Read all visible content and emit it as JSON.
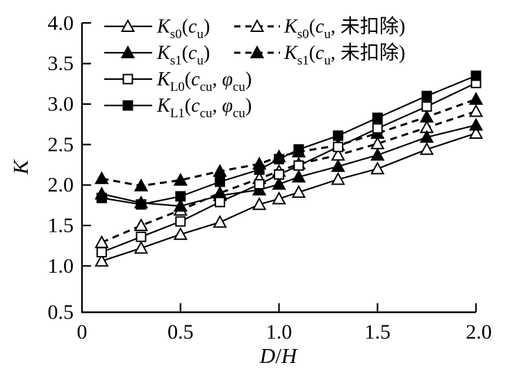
{
  "figure": {
    "background_color": "#ffffff",
    "ink_color": "#000000"
  },
  "chart_data": {
    "type": "line",
    "title": "",
    "xlabel_parts": [
      {
        "t": "D",
        "i": 1
      },
      {
        "t": "/"
      },
      {
        "t": "H",
        "i": 1
      }
    ],
    "ylabel_parts": [
      {
        "t": "K",
        "i": 1
      }
    ],
    "xlabel_text": "D/H",
    "ylabel_text": "K",
    "xlim": [
      0,
      2.0
    ],
    "ylim": [
      0.5,
      4.0
    ],
    "xticks": [
      0,
      0.5,
      1.0,
      1.5,
      2.0
    ],
    "x_tick_labels": [
      "0",
      "0.5",
      "1.0",
      "1.5",
      "2.0"
    ],
    "yticks": [
      0.5,
      1.0,
      1.5,
      2.0,
      2.5,
      3.0,
      3.5,
      4.0
    ],
    "y_tick_labels": [
      "0.5",
      "1.0",
      "1.5",
      "2.0",
      "2.5",
      "3.0",
      "3.5",
      "4.0"
    ],
    "grid": false,
    "legend_position": "top-left",
    "x": [
      0.1,
      0.3,
      0.5,
      0.7,
      0.9,
      1.0,
      1.1,
      1.3,
      1.5,
      1.75,
      2.0
    ],
    "series": [
      {
        "id": "Ks0",
        "name": "Ks0(cu)",
        "marker": "triangle-open",
        "line": "solid",
        "label_parts": [
          {
            "t": "K",
            "i": 1
          },
          {
            "t": "s0",
            "sub": 1
          },
          {
            "t": "("
          },
          {
            "t": "c",
            "i": 1
          },
          {
            "t": "u",
            "sub": 1
          },
          {
            "t": ")"
          }
        ],
        "values": [
          1.06,
          1.22,
          1.39,
          1.54,
          1.76,
          1.83,
          1.91,
          2.07,
          2.2,
          2.44,
          2.64
        ]
      },
      {
        "id": "Ks0_raw",
        "name": "Ks0(cu, 未扣除)",
        "marker": "triangle-open",
        "line": "dashed",
        "label_parts": [
          {
            "t": "K",
            "i": 1
          },
          {
            "t": "s0",
            "sub": 1
          },
          {
            "t": "("
          },
          {
            "t": "c",
            "i": 1
          },
          {
            "t": "u",
            "sub": 1
          },
          {
            "t": ", 未扣除)"
          }
        ],
        "values": [
          1.29,
          1.5,
          1.69,
          1.9,
          2.08,
          2.17,
          2.26,
          2.37,
          2.51,
          2.71,
          2.91
        ]
      },
      {
        "id": "Ks1",
        "name": "Ks1(cu)",
        "marker": "triangle-filled",
        "line": "solid",
        "label_parts": [
          {
            "t": "K",
            "i": 1
          },
          {
            "t": "s1",
            "sub": 1
          },
          {
            "t": "("
          },
          {
            "t": "c",
            "i": 1
          },
          {
            "t": "u",
            "sub": 1
          },
          {
            "t": ")"
          }
        ],
        "values": [
          1.89,
          1.78,
          1.74,
          1.87,
          1.94,
          2.01,
          2.1,
          2.23,
          2.37,
          2.59,
          2.74
        ]
      },
      {
        "id": "Ks1_raw",
        "name": "Ks1(cu, 未扣除)",
        "marker": "triangle-filled",
        "line": "dashed",
        "label_parts": [
          {
            "t": "K",
            "i": 1
          },
          {
            "t": "s1",
            "sub": 1
          },
          {
            "t": "("
          },
          {
            "t": "c",
            "i": 1
          },
          {
            "t": "u",
            "sub": 1
          },
          {
            "t": ", 未扣除)"
          }
        ],
        "values": [
          2.08,
          1.99,
          2.06,
          2.17,
          2.26,
          2.35,
          2.41,
          2.49,
          2.64,
          2.84,
          3.06
        ]
      },
      {
        "id": "KL0",
        "name": "KL0(ccu, φcu)",
        "marker": "square-open",
        "line": "solid",
        "label_parts": [
          {
            "t": "K",
            "i": 1
          },
          {
            "t": "L0",
            "sub": 1
          },
          {
            "t": "("
          },
          {
            "t": "c",
            "i": 1
          },
          {
            "t": "cu",
            "sub": 1
          },
          {
            "t": ", "
          },
          {
            "t": "φ",
            "i": 1
          },
          {
            "t": "cu",
            "sub": 1
          },
          {
            "t": ")"
          }
        ],
        "values": [
          1.17,
          1.36,
          1.55,
          1.79,
          2.01,
          2.13,
          2.24,
          2.47,
          2.7,
          2.97,
          3.26
        ]
      },
      {
        "id": "KL1",
        "name": "KL1(ccu, φcu)",
        "marker": "square-filled",
        "line": "solid",
        "label_parts": [
          {
            "t": "K",
            "i": 1
          },
          {
            "t": "L1",
            "sub": 1
          },
          {
            "t": "("
          },
          {
            "t": "c",
            "i": 1
          },
          {
            "t": "cu",
            "sub": 1
          },
          {
            "t": ", "
          },
          {
            "t": "φ",
            "i": 1
          },
          {
            "t": "cu",
            "sub": 1
          },
          {
            "t": ")"
          }
        ],
        "values": [
          1.84,
          1.76,
          1.86,
          2.04,
          2.19,
          2.32,
          2.44,
          2.61,
          2.83,
          3.1,
          3.35
        ]
      }
    ],
    "legend_rows": [
      [
        "Ks0",
        "Ks0_raw"
      ],
      [
        "Ks1",
        "Ks1_raw"
      ],
      [
        "KL0"
      ],
      [
        "KL1"
      ]
    ]
  }
}
